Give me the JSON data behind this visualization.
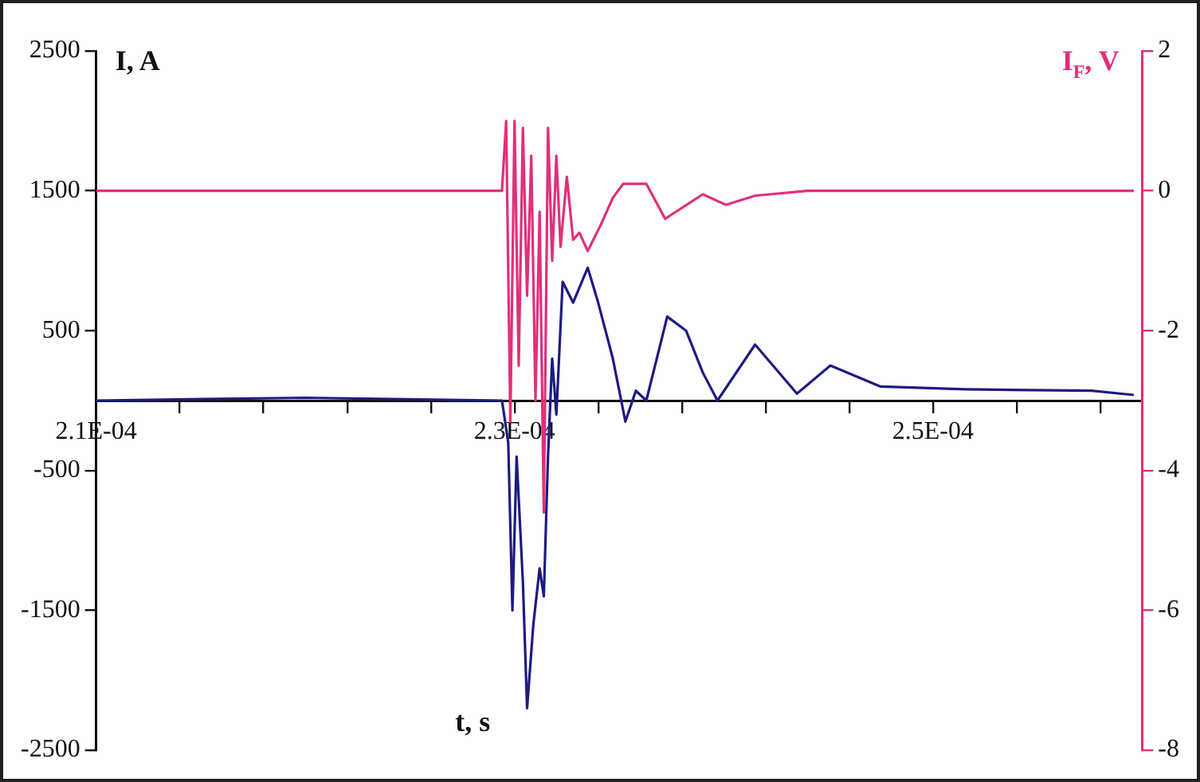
{
  "chart_data": {
    "type": "line",
    "xlabel": "t, s",
    "ylabel": "I, A",
    "y2label": "I$_{F}$, V",
    "xlim": [
      0.00021,
      0.00026
    ],
    "xticks": [
      {
        "value": 0.00021,
        "label": "2.1E-04"
      },
      {
        "value": 0.000214,
        "label": null
      },
      {
        "value": 0.000218,
        "label": null
      },
      {
        "value": 0.000222,
        "label": null
      },
      {
        "value": 0.000226,
        "label": null
      },
      {
        "value": 0.00023,
        "label": "2.3E-04"
      },
      {
        "value": 0.000234,
        "label": null
      },
      {
        "value": 0.000238,
        "label": null
      },
      {
        "value": 0.000242,
        "label": null
      },
      {
        "value": 0.000246,
        "label": null
      },
      {
        "value": 0.00025,
        "label": "2.5E-04"
      },
      {
        "value": 0.000254,
        "label": null
      },
      {
        "value": 0.000258,
        "label": null
      }
    ],
    "ylim": [
      -2500,
      2500
    ],
    "yticks": [
      -2500,
      -1500,
      -500,
      500,
      1500,
      2500
    ],
    "y2lim": [
      -8,
      2
    ],
    "y2ticks": [
      -8,
      -6,
      -4,
      -2,
      0,
      2
    ],
    "grid": false,
    "legend": false,
    "marker": "none",
    "line_style": "solid",
    "series": [
      {
        "color": "#1c1c82",
        "x": [
          0.00021,
          0.00022,
          0.0002294,
          0.0002297,
          0.0002299,
          0.0002301,
          0.0002304,
          0.0002306,
          0.0002309,
          0.0002312,
          0.0002314,
          0.0002316,
          0.0002318,
          0.000232,
          0.0002323,
          0.0002328,
          0.0002335,
          0.000234,
          0.0002347,
          0.0002353,
          0.0002358,
          0.0002363,
          0.0002373,
          0.0002382,
          0.000239,
          0.0002397,
          0.0002415,
          0.0002435,
          0.0002451,
          0.0002475,
          0.0002516,
          0.0002576,
          0.0002596
        ],
        "values": [
          0,
          20,
          0,
          -300,
          -1500,
          -400,
          -1300,
          -2200,
          -1600,
          -1200,
          -1400,
          -400,
          300,
          -100,
          850,
          700,
          950,
          700,
          300,
          -150,
          70,
          0,
          600,
          500,
          200,
          0,
          400,
          50,
          250,
          100,
          80,
          70,
          40
        ]
      },
      {
        "color": "#e0307a",
        "axis": "y2",
        "x": [
          0.00021,
          0.0002294,
          0.0002296,
          0.0002298,
          0.00023,
          0.0002302,
          0.0002304,
          0.0002306,
          0.0002308,
          0.000231,
          0.0002312,
          0.0002314,
          0.0002316,
          0.0002318,
          0.000232,
          0.0002322,
          0.0002325,
          0.0002328,
          0.0002331,
          0.0002335,
          0.0002341,
          0.0002347,
          0.0002352,
          0.0002363,
          0.0002372,
          0.000239,
          0.0002401,
          0.0002415,
          0.000244,
          0.0002596
        ],
        "values": [
          0,
          0,
          1.0,
          -3.3,
          1.0,
          -2.5,
          0.9,
          -1.5,
          0.5,
          -3.0,
          -0.3,
          -4.6,
          0.9,
          -1.0,
          0.5,
          -0.8,
          0.2,
          -0.7,
          -0.6,
          -0.86,
          -0.5,
          -0.1,
          0.1,
          0.1,
          -0.4,
          -0.05,
          -0.2,
          -0.07,
          0,
          0
        ]
      }
    ]
  }
}
